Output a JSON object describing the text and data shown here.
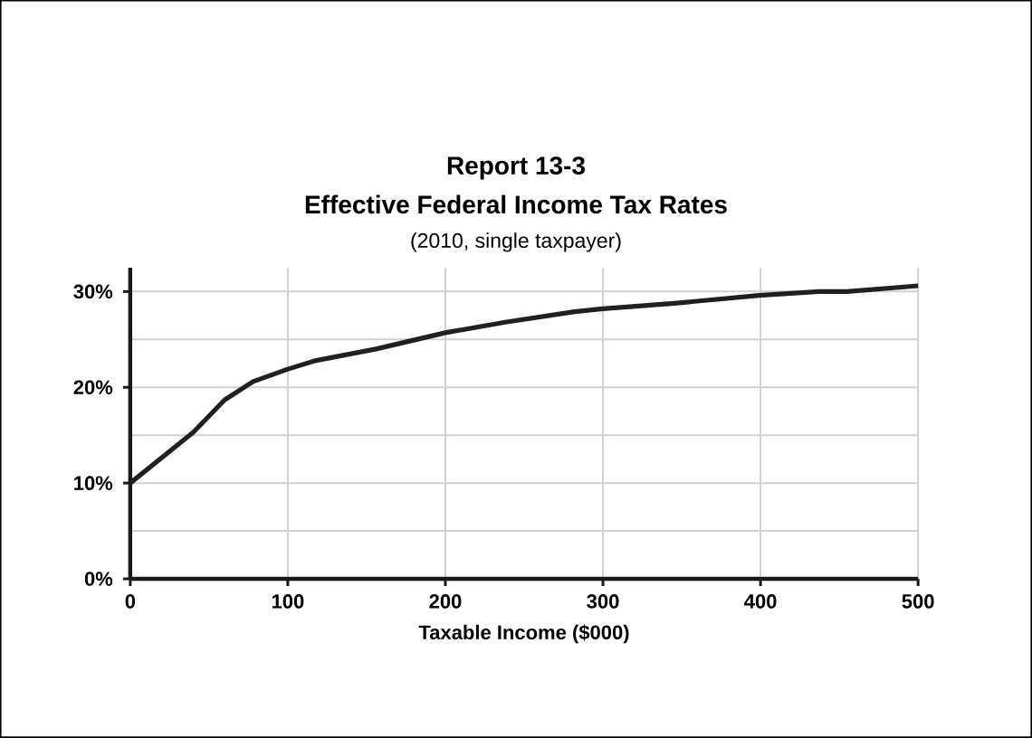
{
  "chart_data": {
    "type": "line",
    "title": "Report 13-3",
    "subtitle": "Effective Federal Income Tax Rates",
    "annotations": [
      "(2010, single taxpayer)"
    ],
    "xlabel": "Taxable Income ($000)",
    "x": [
      0,
      40,
      60,
      78,
      100,
      118,
      156,
      200,
      238,
      282,
      300,
      347,
      399,
      437,
      455,
      500
    ],
    "series": [
      {
        "color": "#231f20",
        "values": [
          10.0,
          15.3,
          18.7,
          20.6,
          21.9,
          22.8,
          24.0,
          25.7,
          26.8,
          27.9,
          28.2,
          28.8,
          29.6,
          30.0,
          30.0,
          30.6
        ]
      }
    ],
    "xlim": [
      0,
      500
    ],
    "xticks": [
      0,
      100,
      200,
      300,
      400,
      500
    ],
    "ylim": [
      0,
      32.5
    ],
    "yticks": [
      {
        "value": 0,
        "label": "0%"
      },
      {
        "value": 5,
        "label": null
      },
      {
        "value": 10,
        "label": "10%"
      },
      {
        "value": 15,
        "label": null
      },
      {
        "value": 20,
        "label": "20%"
      },
      {
        "value": 25,
        "label": null
      },
      {
        "value": 30,
        "label": "30%"
      }
    ],
    "grid": true,
    "marker": "none",
    "line_style": "solid"
  }
}
